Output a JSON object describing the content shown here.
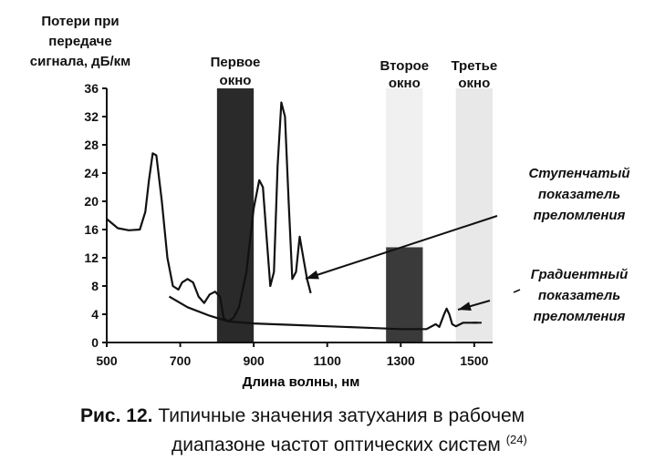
{
  "chart_data": {
    "type": "line",
    "ylabel_lines": [
      "Потери при",
      "передаче",
      "сигнала, дБ/км"
    ],
    "xlabel": "Длина волны, нм",
    "xlim": [
      500,
      1550
    ],
    "ylim": [
      0,
      36
    ],
    "x_ticks": [
      500,
      700,
      900,
      1100,
      1300,
      1500
    ],
    "y_ticks": [
      0,
      4,
      8,
      12,
      16,
      20,
      24,
      28,
      32,
      36
    ],
    "windows": [
      {
        "label_lines": [
          "Первое",
          "окно"
        ],
        "x_range": [
          800,
          900
        ]
      },
      {
        "label_lines": [
          "Второе",
          "окно"
        ],
        "x_range": [
          1260,
          1360
        ]
      },
      {
        "label_lines": [
          "Третье",
          "окно"
        ],
        "x_range": [
          1450,
          1550
        ]
      }
    ],
    "series": [
      {
        "name": "Ступенчатый показатель преломления",
        "label_lines": [
          "Ступенчатый",
          "показатель",
          "преломления"
        ],
        "points": [
          [
            500,
            17.5
          ],
          [
            530,
            16.2
          ],
          [
            560,
            15.9
          ],
          [
            590,
            16.0
          ],
          [
            605,
            18.5
          ],
          [
            615,
            23
          ],
          [
            625,
            26.8
          ],
          [
            635,
            26.5
          ],
          [
            650,
            20
          ],
          [
            665,
            12
          ],
          [
            680,
            8
          ],
          [
            695,
            7.5
          ],
          [
            705,
            8.5
          ],
          [
            720,
            9
          ],
          [
            735,
            8.5
          ],
          [
            750,
            6.5
          ],
          [
            765,
            5.6
          ],
          [
            780,
            6.8
          ],
          [
            795,
            7.2
          ],
          [
            808,
            6.5
          ],
          [
            818,
            3.5
          ],
          [
            830,
            3
          ],
          [
            845,
            3.5
          ],
          [
            860,
            5
          ],
          [
            880,
            10
          ],
          [
            900,
            19
          ],
          [
            915,
            23
          ],
          [
            925,
            22
          ],
          [
            935,
            15
          ],
          [
            945,
            8
          ],
          [
            955,
            10
          ],
          [
            965,
            25
          ],
          [
            975,
            34
          ],
          [
            985,
            32
          ],
          [
            995,
            20
          ],
          [
            1005,
            9
          ],
          [
            1015,
            10
          ],
          [
            1025,
            15
          ],
          [
            1035,
            12
          ],
          [
            1045,
            9
          ],
          [
            1055,
            7
          ]
        ]
      },
      {
        "name": "Градиентный показатель преломления",
        "label_lines": [
          "Градиентный",
          "показатель",
          "преломления"
        ],
        "points": [
          [
            670,
            6.5
          ],
          [
            720,
            5
          ],
          [
            780,
            3.8
          ],
          [
            830,
            3
          ],
          [
            900,
            2.7
          ],
          [
            1000,
            2.5
          ],
          [
            1100,
            2.3
          ],
          [
            1200,
            2.1
          ],
          [
            1300,
            1.9
          ],
          [
            1370,
            1.9
          ],
          [
            1395,
            2.6
          ],
          [
            1405,
            2.2
          ],
          [
            1418,
            4
          ],
          [
            1425,
            4.8
          ],
          [
            1432,
            4
          ],
          [
            1440,
            2.6
          ],
          [
            1450,
            2.3
          ],
          [
            1470,
            2.8
          ],
          [
            1510,
            2.8
          ]
        ]
      }
    ]
  },
  "caption": {
    "label": "Рис. 12.",
    "line1": "Типичные значения затухания в рабочем",
    "line2": "диапазоне частот оптических систем",
    "ref": "(24)"
  },
  "colors": {
    "ink": "#111111",
    "window_dark": "#2a2a2a"
  }
}
